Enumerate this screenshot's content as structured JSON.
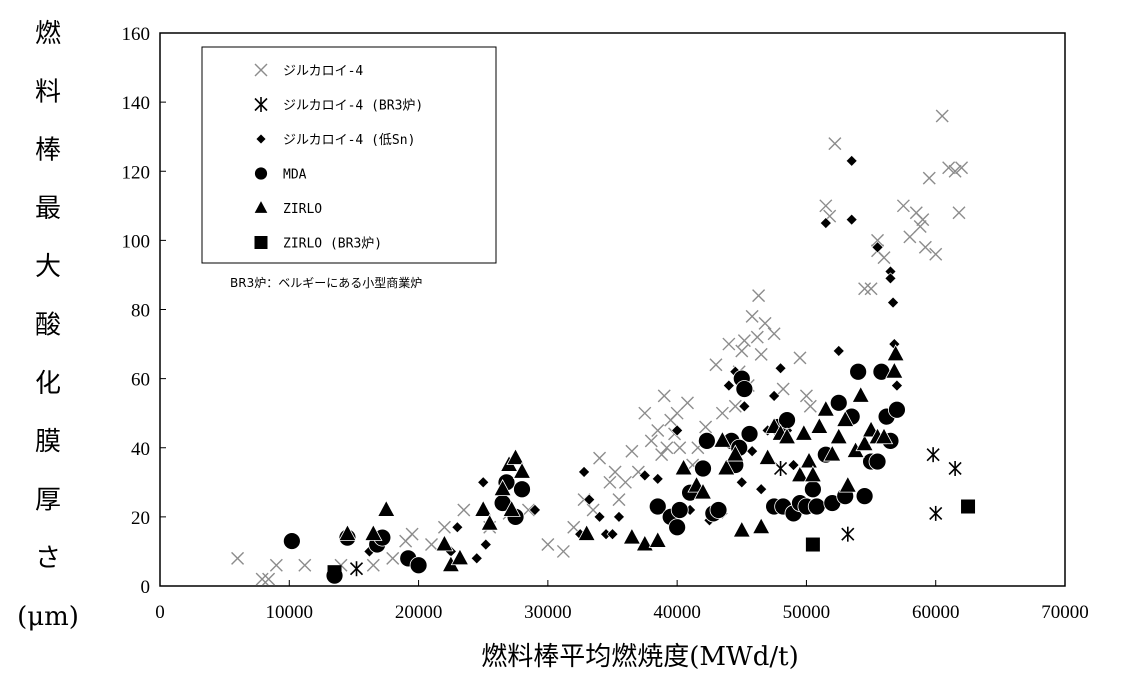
{
  "chart_data": {
    "type": "scatter",
    "xlabel": "燃料棒平均燃焼度(MWd/t)",
    "ylabel_chars": [
      "燃",
      "料",
      "棒",
      "最",
      "大",
      "酸",
      "化",
      "膜",
      "厚",
      "さ",
      "(μm)"
    ],
    "xlim": [
      0,
      70000
    ],
    "ylim": [
      0,
      160
    ],
    "x_ticks": [
      "0",
      "10000",
      "20000",
      "30000",
      "40000",
      "50000",
      "60000",
      "70000"
    ],
    "y_ticks": [
      "0",
      "20",
      "40",
      "60",
      "80",
      "100",
      "120",
      "140",
      "160"
    ],
    "grid": false,
    "legend_position": "top-left",
    "note": "BR3炉：ベルギーにある小型商業炉",
    "series": [
      {
        "name": "ジルカロイ-4",
        "marker": "x",
        "color": "#8c8c8c",
        "points": [
          [
            6000,
            8
          ],
          [
            7900,
            2
          ],
          [
            8400,
            2
          ],
          [
            9000,
            6
          ],
          [
            11200,
            6
          ],
          [
            14000,
            6
          ],
          [
            16500,
            6
          ],
          [
            18000,
            8
          ],
          [
            19000,
            13
          ],
          [
            19500,
            15
          ],
          [
            21000,
            12
          ],
          [
            22000,
            17
          ],
          [
            23500,
            22
          ],
          [
            25500,
            17
          ],
          [
            27000,
            21
          ],
          [
            28500,
            22
          ],
          [
            30000,
            12
          ],
          [
            31200,
            10
          ],
          [
            32000,
            17
          ],
          [
            32800,
            25
          ],
          [
            33500,
            22
          ],
          [
            34000,
            37
          ],
          [
            34800,
            30
          ],
          [
            35200,
            33
          ],
          [
            35500,
            25
          ],
          [
            36000,
            30
          ],
          [
            36500,
            39
          ],
          [
            37000,
            33
          ],
          [
            37500,
            50
          ],
          [
            38000,
            42
          ],
          [
            38500,
            45
          ],
          [
            38800,
            38
          ],
          [
            39000,
            55
          ],
          [
            39200,
            40
          ],
          [
            39500,
            48
          ],
          [
            39800,
            44
          ],
          [
            40000,
            50
          ],
          [
            40200,
            40
          ],
          [
            40800,
            53
          ],
          [
            41200,
            35
          ],
          [
            41600,
            40
          ],
          [
            42200,
            46
          ],
          [
            43000,
            64
          ],
          [
            43500,
            50
          ],
          [
            44000,
            70
          ],
          [
            44500,
            52
          ],
          [
            44800,
            62
          ],
          [
            45000,
            68
          ],
          [
            45200,
            71
          ],
          [
            45500,
            58
          ],
          [
            45800,
            78
          ],
          [
            46200,
            72
          ],
          [
            46300,
            84
          ],
          [
            46500,
            67
          ],
          [
            46800,
            76
          ],
          [
            47500,
            73
          ],
          [
            48200,
            57
          ],
          [
            49500,
            66
          ],
          [
            50000,
            55
          ],
          [
            50300,
            52
          ],
          [
            51500,
            110
          ],
          [
            51800,
            107
          ],
          [
            52200,
            128
          ],
          [
            54500,
            86
          ],
          [
            55000,
            86
          ],
          [
            55500,
            100
          ],
          [
            55500,
            97
          ],
          [
            56000,
            95
          ],
          [
            57500,
            110
          ],
          [
            58000,
            101
          ],
          [
            58500,
            108
          ],
          [
            58800,
            104
          ],
          [
            59000,
            106
          ],
          [
            59200,
            98
          ],
          [
            59500,
            118
          ],
          [
            60000,
            96
          ],
          [
            60500,
            136
          ],
          [
            61000,
            121
          ],
          [
            61500,
            120
          ],
          [
            61800,
            108
          ],
          [
            62000,
            121
          ]
        ]
      },
      {
        "name": "ジルカロイ-4 (BR3炉)",
        "marker": "asterisk",
        "color": "#000000",
        "points": [
          [
            15200,
            5
          ],
          [
            48000,
            34
          ],
          [
            53200,
            15
          ],
          [
            59800,
            38
          ],
          [
            60000,
            21
          ],
          [
            61500,
            34
          ]
        ]
      },
      {
        "name": "ジルカロイ-4 (低Sn)",
        "marker": "diamond",
        "color": "#000000",
        "points": [
          [
            13500,
            3
          ],
          [
            16200,
            10
          ],
          [
            22500,
            10
          ],
          [
            23000,
            17
          ],
          [
            24500,
            8
          ],
          [
            25000,
            30
          ],
          [
            25200,
            12
          ],
          [
            26500,
            28
          ],
          [
            27500,
            21
          ],
          [
            29000,
            22
          ],
          [
            32500,
            15
          ],
          [
            32800,
            33
          ],
          [
            33200,
            25
          ],
          [
            34000,
            20
          ],
          [
            34500,
            15
          ],
          [
            35000,
            15
          ],
          [
            35500,
            20
          ],
          [
            37500,
            32
          ],
          [
            38500,
            31
          ],
          [
            40000,
            45
          ],
          [
            41000,
            22
          ],
          [
            42500,
            19
          ],
          [
            43500,
            21
          ],
          [
            44000,
            58
          ],
          [
            44500,
            62
          ],
          [
            45000,
            30
          ],
          [
            45200,
            52
          ],
          [
            45800,
            39
          ],
          [
            46500,
            28
          ],
          [
            47000,
            45
          ],
          [
            47500,
            55
          ],
          [
            48000,
            63
          ],
          [
            48500,
            45
          ],
          [
            49000,
            35
          ],
          [
            50500,
            28
          ],
          [
            51500,
            105
          ],
          [
            52500,
            68
          ],
          [
            53500,
            123
          ],
          [
            53500,
            106
          ],
          [
            55500,
            98
          ],
          [
            56500,
            91
          ],
          [
            56500,
            89
          ],
          [
            56700,
            82
          ],
          [
            56800,
            70
          ],
          [
            57000,
            58
          ]
        ]
      },
      {
        "name": "MDA",
        "marker": "circle",
        "color": "#000000",
        "points": [
          [
            10200,
            13
          ],
          [
            13500,
            3
          ],
          [
            14500,
            14
          ],
          [
            16800,
            12
          ],
          [
            17200,
            14
          ],
          [
            19200,
            8
          ],
          [
            20000,
            6
          ],
          [
            26500,
            24
          ],
          [
            26800,
            30
          ],
          [
            27500,
            20
          ],
          [
            28000,
            28
          ],
          [
            38500,
            23
          ],
          [
            39500,
            20
          ],
          [
            40000,
            17
          ],
          [
            40200,
            22
          ],
          [
            41000,
            27
          ],
          [
            42000,
            34
          ],
          [
            42300,
            42
          ],
          [
            42800,
            21
          ],
          [
            43200,
            22
          ],
          [
            44200,
            42
          ],
          [
            44500,
            35
          ],
          [
            44800,
            40
          ],
          [
            45000,
            60
          ],
          [
            45200,
            57
          ],
          [
            45600,
            44
          ],
          [
            47500,
            23
          ],
          [
            47800,
            46
          ],
          [
            48200,
            23
          ],
          [
            48500,
            48
          ],
          [
            49000,
            21
          ],
          [
            49500,
            24
          ],
          [
            50000,
            23
          ],
          [
            50500,
            28
          ],
          [
            50800,
            23
          ],
          [
            51500,
            38
          ],
          [
            52000,
            24
          ],
          [
            52500,
            53
          ],
          [
            53000,
            26
          ],
          [
            53500,
            49
          ],
          [
            54000,
            62
          ],
          [
            54500,
            26
          ],
          [
            55000,
            36
          ],
          [
            55500,
            36
          ],
          [
            55800,
            62
          ],
          [
            56200,
            49
          ],
          [
            56500,
            42
          ],
          [
            57000,
            51
          ]
        ]
      },
      {
        "name": "ZIRLO",
        "marker": "triangle",
        "color": "#000000",
        "points": [
          [
            14500,
            15
          ],
          [
            16500,
            15
          ],
          [
            17500,
            22
          ],
          [
            22000,
            12
          ],
          [
            22500,
            6
          ],
          [
            23200,
            8
          ],
          [
            25000,
            22
          ],
          [
            25500,
            18
          ],
          [
            26500,
            28
          ],
          [
            27000,
            35
          ],
          [
            27200,
            22
          ],
          [
            27500,
            37
          ],
          [
            28000,
            33
          ],
          [
            33000,
            15
          ],
          [
            36500,
            14
          ],
          [
            37500,
            12
          ],
          [
            38500,
            13
          ],
          [
            40500,
            34
          ],
          [
            41500,
            29
          ],
          [
            42000,
            27
          ],
          [
            43500,
            42
          ],
          [
            43800,
            34
          ],
          [
            44500,
            38
          ],
          [
            45000,
            16
          ],
          [
            46500,
            17
          ],
          [
            47000,
            37
          ],
          [
            47500,
            46
          ],
          [
            48000,
            44
          ],
          [
            48500,
            43
          ],
          [
            49500,
            32
          ],
          [
            49800,
            44
          ],
          [
            50200,
            36
          ],
          [
            50500,
            32
          ],
          [
            51000,
            46
          ],
          [
            51500,
            51
          ],
          [
            52000,
            38
          ],
          [
            52500,
            43
          ],
          [
            53000,
            48
          ],
          [
            53200,
            29
          ],
          [
            53800,
            39
          ],
          [
            54200,
            55
          ],
          [
            54500,
            41
          ],
          [
            55000,
            45
          ],
          [
            55500,
            43
          ],
          [
            56000,
            43
          ],
          [
            56800,
            62
          ],
          [
            56900,
            67
          ]
        ]
      },
      {
        "name": "ZIRLO (BR3炉)",
        "marker": "square",
        "color": "#000000",
        "points": [
          [
            13500,
            4
          ],
          [
            50500,
            12
          ],
          [
            62500,
            23
          ]
        ]
      }
    ]
  }
}
